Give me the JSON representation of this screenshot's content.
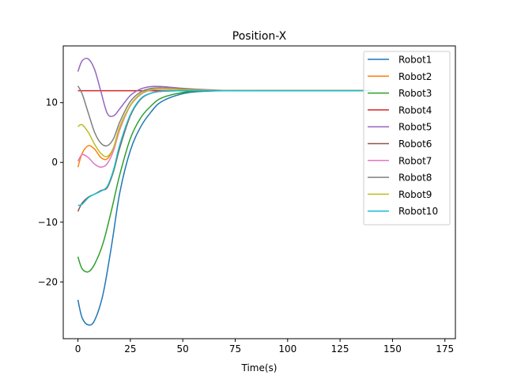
{
  "chart_data": {
    "type": "line",
    "title": "Position-X",
    "xlabel": "Time(s)",
    "ylabel": "",
    "xlim": [
      -7,
      180
    ],
    "ylim": [
      -29.5,
      19.5
    ],
    "xticks": [
      0,
      25,
      50,
      75,
      100,
      125,
      150,
      175
    ],
    "yticks": [
      -20,
      -10,
      0,
      10
    ],
    "ytick_labels": [
      "−20",
      "−10",
      "0",
      "10"
    ],
    "grid": false,
    "legend_position": "top-right",
    "colors": [
      "#1f77b4",
      "#ff7f0e",
      "#2ca02c",
      "#d62728",
      "#9467bd",
      "#8c564b",
      "#e377c2",
      "#7f7f7f",
      "#bcbd22",
      "#17becf"
    ],
    "series": [
      {
        "name": "Robot1",
        "x": [
          0,
          2,
          5,
          8,
          12,
          16,
          20,
          25,
          30,
          35,
          40,
          50,
          60,
          75,
          100,
          125,
          140
        ],
        "y": [
          -23,
          -26,
          -27.2,
          -26.4,
          -22,
          -14,
          -5,
          2,
          6,
          8.5,
          10.2,
          11.5,
          11.9,
          12,
          12,
          12,
          12
        ]
      },
      {
        "name": "Robot2",
        "x": [
          0,
          2,
          5,
          8,
          11,
          14,
          17,
          20,
          25,
          30,
          35,
          40,
          50,
          60,
          75,
          100,
          125,
          140
        ],
        "y": [
          -0.8,
          1.5,
          2.8,
          2.2,
          0.8,
          0.6,
          2.5,
          6,
          9.5,
          11.4,
          12.2,
          12.3,
          12.2,
          12.1,
          12,
          12,
          12,
          12
        ]
      },
      {
        "name": "Robot3",
        "x": [
          0,
          2,
          5,
          8,
          12,
          16,
          20,
          25,
          30,
          35,
          40,
          50,
          60,
          75,
          100,
          125,
          140
        ],
        "y": [
          -15.8,
          -17.8,
          -18.3,
          -17,
          -13.5,
          -8,
          -2,
          4,
          7.5,
          9.5,
          10.8,
          11.7,
          11.95,
          12,
          12,
          12,
          12
        ]
      },
      {
        "name": "Robot4",
        "x": [
          0,
          20,
          40,
          60,
          80,
          100,
          125,
          140
        ],
        "y": [
          12,
          12,
          12,
          12,
          12,
          12,
          12,
          12
        ]
      },
      {
        "name": "Robot5",
        "x": [
          0,
          2,
          5,
          8,
          11,
          14,
          17,
          20,
          25,
          30,
          35,
          40,
          50,
          60,
          75,
          100,
          125,
          140
        ],
        "y": [
          15.2,
          17,
          17.3,
          15.5,
          11.8,
          8.2,
          7.8,
          9,
          11.2,
          12.3,
          12.7,
          12.7,
          12.4,
          12.2,
          12,
          12,
          12,
          12
        ]
      },
      {
        "name": "Robot6",
        "x": [
          0,
          2,
          5,
          8,
          11,
          14,
          17,
          20,
          25,
          30,
          35,
          40,
          50,
          60,
          75,
          100,
          125,
          140
        ],
        "y": [
          -8.2,
          -6.8,
          -5.8,
          -5.3,
          -4.7,
          -4.2,
          -1.5,
          2.5,
          7.8,
          10.6,
          11.6,
          11.9,
          12,
          12,
          12,
          12,
          12,
          12
        ]
      },
      {
        "name": "Robot7",
        "x": [
          0,
          2,
          5,
          8,
          11,
          14,
          17,
          20,
          25,
          30,
          35,
          40,
          50,
          60,
          75,
          100,
          125,
          140
        ],
        "y": [
          0.2,
          1.3,
          0.8,
          -0.3,
          -0.8,
          -0.2,
          2,
          5.5,
          9.5,
          11.4,
          12.1,
          12.3,
          12.2,
          12.1,
          12,
          12,
          12,
          12
        ]
      },
      {
        "name": "Robot8",
        "x": [
          0,
          2,
          5,
          8,
          11,
          14,
          17,
          20,
          25,
          30,
          35,
          40,
          50,
          60,
          75,
          100,
          125,
          140
        ],
        "y": [
          12.8,
          11.5,
          8.2,
          5,
          3.2,
          2.8,
          4,
          6.8,
          10.2,
          11.8,
          12.4,
          12.5,
          12.3,
          12.1,
          12,
          12,
          12,
          12
        ]
      },
      {
        "name": "Robot9",
        "x": [
          0,
          2,
          5,
          8,
          11,
          14,
          17,
          20,
          25,
          30,
          35,
          40,
          50,
          60,
          75,
          100,
          125,
          140
        ],
        "y": [
          6,
          6.3,
          5,
          3,
          1.5,
          1,
          2.5,
          5.8,
          9.6,
          11.5,
          12.2,
          12.4,
          12.2,
          12.1,
          12,
          12,
          12,
          12
        ]
      },
      {
        "name": "Robot10",
        "x": [
          0,
          2,
          5,
          8,
          11,
          14,
          17,
          20,
          25,
          30,
          35,
          40,
          50,
          60,
          75,
          100,
          125,
          140
        ],
        "y": [
          -7.2,
          -7,
          -5.9,
          -5.3,
          -4.8,
          -4,
          -1.2,
          3,
          8,
          10.7,
          11.6,
          11.9,
          12,
          12,
          12,
          12,
          12,
          12
        ]
      }
    ]
  }
}
